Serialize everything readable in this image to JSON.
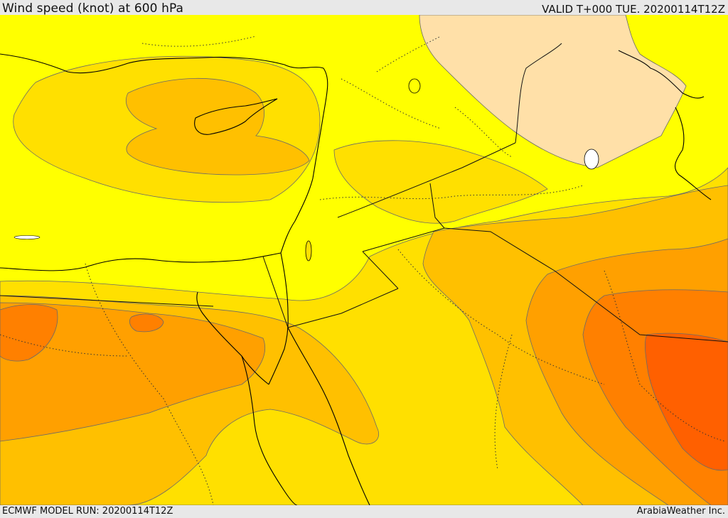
{
  "header": {
    "title": "Wind speed (knot) at 600 hPa",
    "valid": "VALID T+000 TUE. 20200114T12Z"
  },
  "footer": {
    "model_run": "ECMWF MODEL RUN: 20200114T12Z",
    "credit": "ArabiaWeather Inc."
  },
  "map": {
    "region": "Eastern Mediterranean and Middle East",
    "variable": "wind speed",
    "level_hpa": 600,
    "colors": {
      "calm": "#ffe0a8",
      "light": "#ffff00",
      "moderate": "#ffe000",
      "fresh": "#ffc000",
      "strong": "#ffa000",
      "very_strong": "#ff8000",
      "max": "#ff6000",
      "coast": "#000000",
      "contour": "#6a6a6a",
      "water_hole": "#ffffff"
    }
  }
}
